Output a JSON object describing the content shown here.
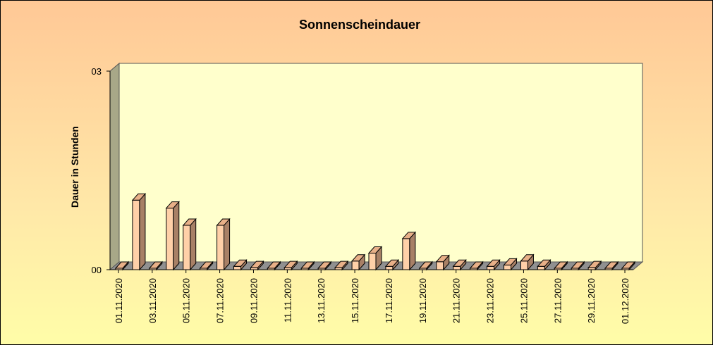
{
  "chart_data": {
    "type": "bar",
    "title": "Sonnenscheindauer",
    "xlabel": "",
    "ylabel": "Dauer in Stunden",
    "ylim": [
      0,
      3
    ],
    "yticks": [
      "00",
      "03"
    ],
    "grid": false,
    "legend": "none",
    "style": "3d",
    "colors": {
      "bar_front": "#ffd0a8",
      "bar_top": "#e8b088",
      "bar_side": "#a88066",
      "floor": "#909090",
      "back_wall": "#ffffcc",
      "side_wall": "#a8a888"
    },
    "categories": [
      "01.11.2020",
      "02.11.2020",
      "03.11.2020",
      "04.11.2020",
      "05.11.2020",
      "06.11.2020",
      "07.11.2020",
      "08.11.2020",
      "09.11.2020",
      "10.11.2020",
      "11.11.2020",
      "12.11.2020",
      "13.11.2020",
      "14.11.2020",
      "15.11.2020",
      "16.11.2020",
      "17.11.2020",
      "18.11.2020",
      "19.11.2020",
      "20.11.2020",
      "21.11.2020",
      "22.11.2020",
      "23.11.2020",
      "24.11.2020",
      "25.11.2020",
      "26.11.2020",
      "27.11.2020",
      "28.11.2020",
      "29.11.2020",
      "30.11.2020",
      "01.12.2020"
    ],
    "xtick_labels": [
      "01.11.2020",
      "03.11.2020",
      "05.11.2020",
      "07.11.2020",
      "09.11.2020",
      "11.11.2020",
      "13.11.2020",
      "15.11.2020",
      "17.11.2020",
      "19.11.2020",
      "21.11.2020",
      "23.11.2020",
      "25.11.2020",
      "27.11.2020",
      "29.11.2020",
      "01.12.2020"
    ],
    "values": [
      0.0,
      1.05,
      0.0,
      0.93,
      0.67,
      0.0,
      0.67,
      0.05,
      0.03,
      0.02,
      0.03,
      0.02,
      0.02,
      0.03,
      0.13,
      0.25,
      0.05,
      0.47,
      0.0,
      0.12,
      0.05,
      0.02,
      0.05,
      0.07,
      0.13,
      0.05,
      0.02,
      0.02,
      0.03,
      0.0,
      0.02
    ]
  }
}
